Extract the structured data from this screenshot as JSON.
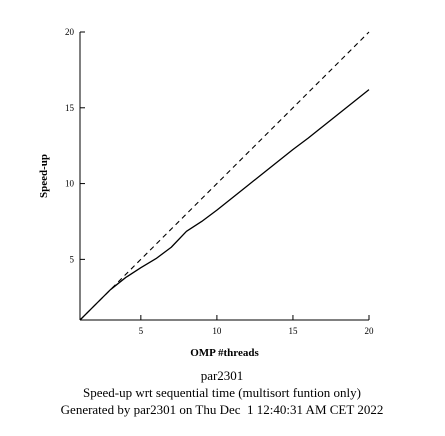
{
  "chart_data": {
    "type": "line",
    "xlabel": "OMP #threads",
    "ylabel": "Speed-up",
    "xlim": [
      1,
      20
    ],
    "ylim": [
      1,
      20
    ],
    "xticks": [
      5,
      10,
      15,
      20
    ],
    "yticks": [
      5,
      10,
      15,
      20
    ],
    "grid": false,
    "series": [
      {
        "style": "dashed",
        "color": "#000000",
        "x": [
          1,
          20
        ],
        "y": [
          1,
          20
        ]
      },
      {
        "style": "solid",
        "color": "#000000",
        "x": [
          1,
          2,
          3,
          4,
          5,
          6,
          7,
          8,
          9,
          10,
          11,
          12,
          13,
          14,
          15,
          16,
          17,
          18,
          19,
          20
        ],
        "y": [
          1.0,
          2.0,
          3.0,
          3.8,
          4.45,
          5.05,
          5.8,
          6.85,
          7.5,
          8.25,
          9.05,
          9.85,
          10.65,
          11.45,
          12.25,
          13.0,
          13.8,
          14.6,
          15.4,
          16.2
        ]
      }
    ],
    "caption": {
      "line1": "par2301",
      "line2": "Speed-up wrt sequential time (multisort funtion only)",
      "line3": "Generated by par2301 on Thu Dec  1 12:40:31 AM CET 2022"
    }
  }
}
